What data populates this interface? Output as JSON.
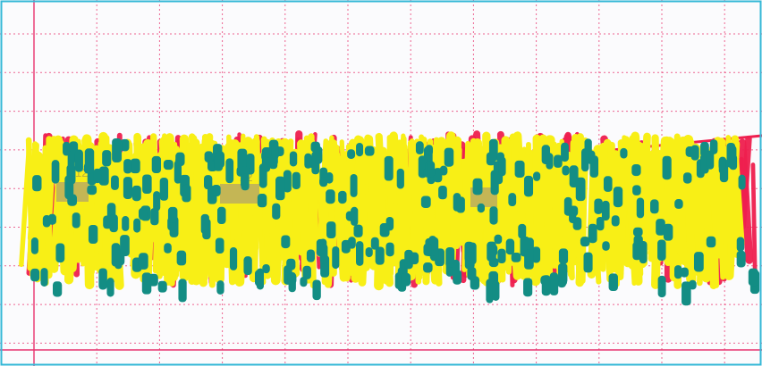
{
  "colors": {
    "paper": "#fbfbfd",
    "grid": "#e8326e",
    "frame": "#35b8d6",
    "yellow_marks": "#f8ef16",
    "red_marks": "#ef1f4f",
    "teal_marks": "#138d84",
    "code_patch": "#b3a36b",
    "faint_print": "#8c8456"
  },
  "faint_print_text": [
    "1225",
    "22",
    "3"
  ]
}
